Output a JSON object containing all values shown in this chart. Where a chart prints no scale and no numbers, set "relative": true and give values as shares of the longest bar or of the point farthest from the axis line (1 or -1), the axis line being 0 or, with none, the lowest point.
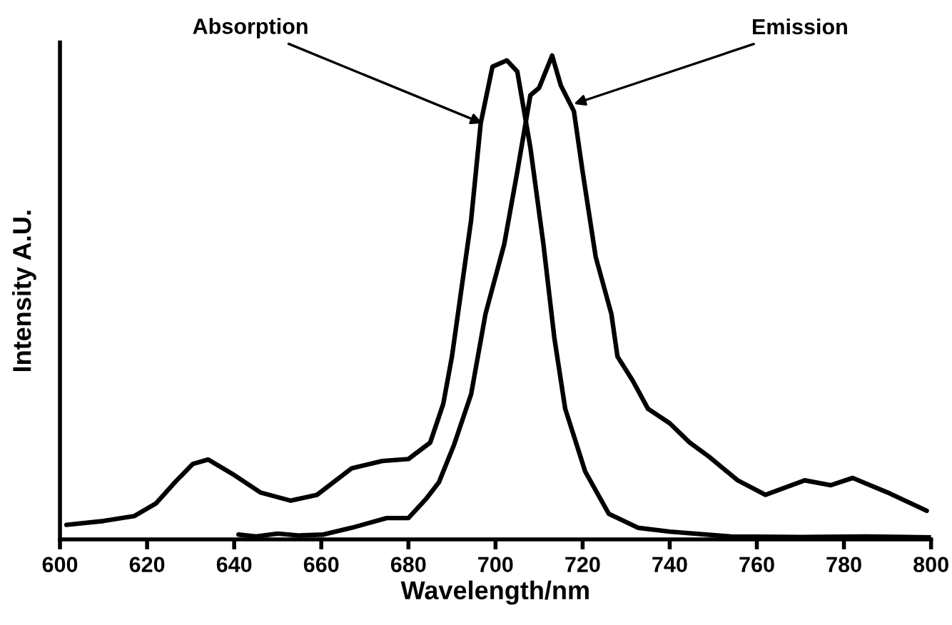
{
  "chart_data": {
    "type": "line",
    "relative": true,
    "xlabel": "Wavelength/nm",
    "ylabel": "Intensity A.U.",
    "xlim": [
      600,
      800
    ],
    "xticks": [
      600,
      620,
      640,
      660,
      680,
      700,
      720,
      740,
      760,
      780,
      800
    ],
    "grid": false,
    "legend": false,
    "marker": "none",
    "line_style": "solid",
    "series": [
      {
        "color": "#000000",
        "x": [
          601.5,
          610,
          617,
          622,
          626.6,
          630.5,
          634,
          640,
          646,
          653,
          659,
          667,
          674,
          680,
          685,
          688,
          690,
          694.4,
          696.6,
          699.3,
          702.6,
          705,
          708,
          711,
          713.5,
          716,
          720.6,
          726,
          732.7,
          740,
          754,
          770,
          785,
          800
        ],
        "values": [
          0.03,
          0.038,
          0.048,
          0.074,
          0.12,
          0.156,
          0.165,
          0.133,
          0.097,
          0.08,
          0.092,
          0.147,
          0.162,
          0.166,
          0.2,
          0.28,
          0.378,
          0.66,
          0.86,
          0.977,
          0.99,
          0.967,
          0.81,
          0.61,
          0.417,
          0.27,
          0.14,
          0.053,
          0.024,
          0.016,
          0.006,
          0.005,
          0.006,
          0.004
        ]
      },
      {
        "color": "#000000",
        "x": [
          641,
          645,
          650,
          655,
          660.5,
          667,
          675,
          680,
          684,
          687,
          690.5,
          694.4,
          697.7,
          702,
          705,
          708,
          710,
          713,
          715,
          718,
          720,
          723,
          726.6,
          728,
          731.5,
          735,
          740,
          744.6,
          749,
          755.6,
          762,
          771,
          777,
          782,
          790,
          799
        ],
        "values": [
          0.01,
          0.006,
          0.012,
          0.008,
          0.01,
          0.024,
          0.044,
          0.044,
          0.083,
          0.118,
          0.196,
          0.3,
          0.466,
          0.61,
          0.76,
          0.918,
          0.933,
          1.0,
          0.938,
          0.885,
          0.76,
          0.584,
          0.466,
          0.378,
          0.328,
          0.27,
          0.24,
          0.2,
          0.171,
          0.122,
          0.092,
          0.122,
          0.112,
          0.127,
          0.097,
          0.059
        ]
      }
    ],
    "annotations": [
      {
        "text": "Absorption",
        "x": 697,
        "y": 0.86
      },
      {
        "text": "Emission",
        "x": 718,
        "y": 0.9
      }
    ]
  }
}
